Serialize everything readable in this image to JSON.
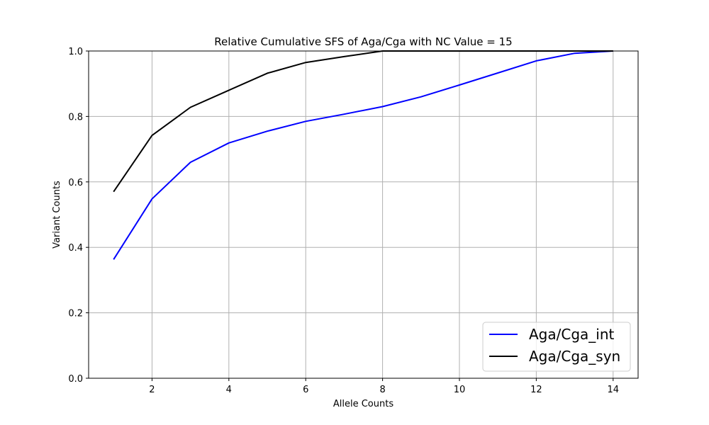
{
  "chart_data": {
    "type": "line",
    "title": "Relative Cumulative SFS of Aga/Cga with NC Value = 15",
    "xlabel": "Allele Counts",
    "ylabel": "Variant Counts",
    "xlim": [
      0.35,
      14.65
    ],
    "ylim": [
      0.0,
      1.0
    ],
    "xticks": [
      2,
      4,
      6,
      8,
      10,
      12,
      14
    ],
    "yticks": [
      0.0,
      0.2,
      0.4,
      0.6,
      0.8,
      1.0
    ],
    "xtick_labels": [
      "2",
      "4",
      "6",
      "8",
      "10",
      "12",
      "14"
    ],
    "ytick_labels": [
      "0.0",
      "0.2",
      "0.4",
      "0.6",
      "0.8",
      "1.0"
    ],
    "grid": true,
    "legend_position": "bottom-right",
    "x": [
      1,
      2,
      3,
      4,
      5,
      6,
      7,
      8,
      9,
      10,
      11,
      12,
      13,
      14
    ],
    "series": [
      {
        "name": "Aga/Cga_int",
        "color": "#0000ff",
        "values": [
          0.363,
          0.548,
          0.66,
          0.719,
          0.755,
          0.785,
          0.807,
          0.83,
          0.86,
          0.896,
          0.933,
          0.97,
          0.993,
          1.0
        ]
      },
      {
        "name": "Aga/Cga_syn",
        "color": "#000000",
        "values": [
          0.57,
          0.742,
          0.828,
          0.88,
          0.932,
          0.965,
          0.983,
          1.0,
          1.0,
          1.0,
          1.0,
          1.0,
          1.0,
          1.0
        ]
      }
    ]
  }
}
